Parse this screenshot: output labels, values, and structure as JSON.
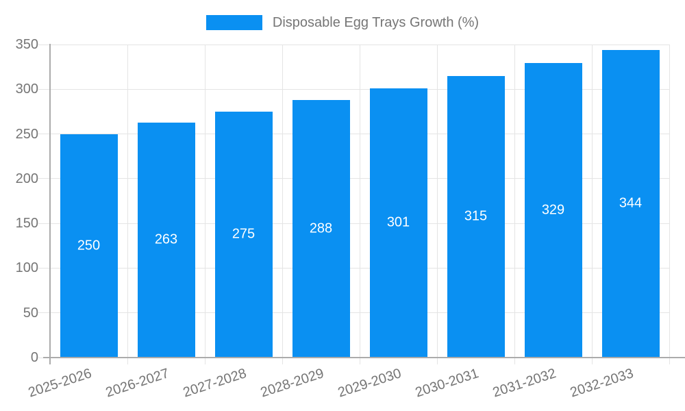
{
  "legend": {
    "label": "Disposable Egg Trays Growth (%)"
  },
  "chart_data": {
    "type": "bar",
    "title": "Disposable Egg Trays Growth (%)",
    "categories": [
      "2025-2026",
      "2026-2027",
      "2027-2028",
      "2028-2029",
      "2029-2030",
      "2030-2031",
      "2031-2032",
      "2032-2033"
    ],
    "values": [
      250,
      263,
      275,
      288,
      301,
      315,
      329,
      344
    ],
    "xlabel": "",
    "ylabel": "",
    "ylim": [
      0,
      350
    ],
    "yticks": [
      0,
      50,
      100,
      150,
      200,
      250,
      300,
      350
    ],
    "grid": true,
    "legend_position": "top-center",
    "value_labels": "inside-bar-center",
    "x_label_rotation_deg": -18,
    "colors": {
      "bar": "#0A90F2",
      "value_label": "#FFFFFF",
      "axis": "#ABABAB",
      "grid": "#E4E4E4",
      "text": "#757575"
    }
  }
}
